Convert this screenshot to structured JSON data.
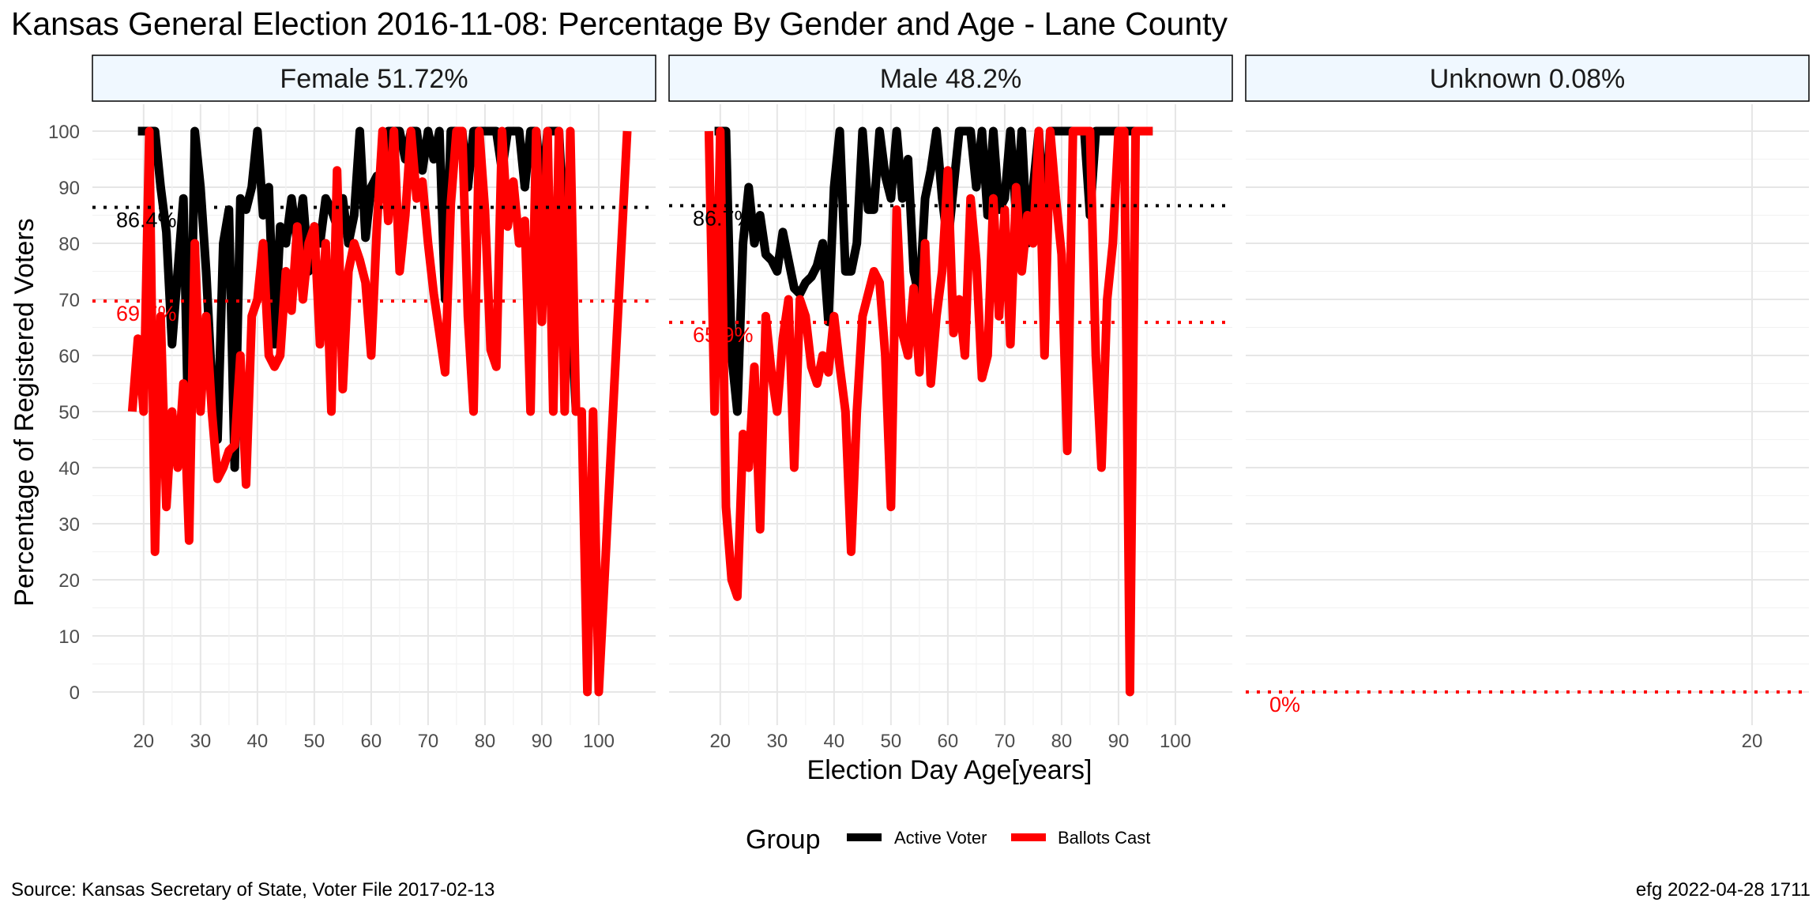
{
  "chart_data": {
    "type": "line",
    "title": "Kansas General Election 2016-11-08:  Percentage By Gender and Age - Lane County",
    "xlabel": "Election Day Age[years]",
    "ylabel": "Percentage of Registered Voters",
    "ylim": [
      0,
      100
    ],
    "yticks": [
      0,
      10,
      20,
      30,
      40,
      50,
      60,
      70,
      80,
      90,
      100
    ],
    "grid": true,
    "legend": {
      "title": "Group",
      "placement": "bottom",
      "items": [
        {
          "label": "Active Voter",
          "color": "#000000"
        },
        {
          "label": "Ballots Cast",
          "color": "#ff0000"
        }
      ]
    },
    "source": "Source:  Kansas Secretary of State, Voter File  2017-02-13",
    "credit": "efg 2022-04-28 1711",
    "panels": [
      {
        "strip": "Female 51.72%",
        "xlim": [
          11,
          110
        ],
        "xticks": [
          20,
          30,
          40,
          50,
          60,
          70,
          80,
          90,
          100
        ],
        "hlines": [
          {
            "value": 86.4,
            "label": "86.4%",
            "color": "#000000"
          },
          {
            "value": 69.7,
            "label": "69.7%",
            "color": "#ff0000"
          }
        ],
        "series": [
          {
            "name": "Active Voter",
            "color": "#000000",
            "x": [
              19,
              20,
              21,
              22,
              23,
              24,
              25,
              26,
              27,
              28,
              29,
              30,
              31,
              32,
              33,
              34,
              35,
              36,
              37,
              38,
              39,
              40,
              41,
              42,
              43,
              44,
              45,
              46,
              47,
              48,
              49,
              50,
              51,
              52,
              53,
              54,
              55,
              56,
              57,
              58,
              59,
              60,
              61,
              62,
              63,
              64,
              65,
              66,
              67,
              68,
              69,
              70,
              71,
              72,
              73,
              74,
              75,
              76,
              77,
              78,
              79,
              80,
              81,
              82,
              83,
              84,
              85,
              86,
              87,
              88,
              89,
              90,
              91,
              92,
              93,
              94,
              95,
              96,
              97
            ],
            "y": [
              100,
              100,
              100,
              100,
              90,
              82,
              62,
              75,
              88,
              40,
              100,
              90,
              75,
              55,
              45,
              80,
              86,
              40,
              88,
              86,
              90,
              100,
              85,
              90,
              62,
              83,
              80,
              88,
              80,
              88,
              75,
              83,
              80,
              88,
              86,
              83,
              88,
              80,
              85,
              100,
              81,
              90,
              92,
              88,
              100,
              100,
              100,
              95,
              100,
              100,
              93,
              100,
              95,
              100,
              70,
              100,
              100,
              100,
              90,
              100,
              100,
              100,
              100,
              100,
              93,
              100,
              100,
              100,
              90,
              100,
              100,
              88,
              100,
              100,
              100,
              80,
              70,
              50,
              50
            ]
          },
          {
            "name": "Ballots Cast",
            "color": "#ff0000",
            "x": [
              18,
              19,
              20,
              21,
              22,
              23,
              24,
              25,
              26,
              27,
              28,
              29,
              30,
              31,
              32,
              33,
              34,
              35,
              36,
              37,
              38,
              39,
              40,
              41,
              42,
              43,
              44,
              45,
              46,
              47,
              48,
              49,
              50,
              51,
              52,
              53,
              54,
              55,
              56,
              57,
              58,
              59,
              60,
              61,
              62,
              63,
              64,
              65,
              66,
              67,
              68,
              69,
              70,
              71,
              72,
              73,
              74,
              75,
              76,
              77,
              78,
              79,
              80,
              81,
              82,
              83,
              84,
              85,
              86,
              87,
              88,
              89,
              90,
              91,
              92,
              93,
              94,
              95,
              96,
              97,
              98,
              99,
              100,
              101,
              102,
              103,
              104,
              105
            ],
            "y": [
              50,
              63,
              50,
              100,
              25,
              67,
              33,
              50,
              40,
              55,
              27,
              80,
              50,
              67,
              50,
              38,
              40,
              43,
              44,
              60,
              37,
              67,
              70,
              80,
              60,
              58,
              60,
              75,
              68,
              83,
              70,
              80,
              83,
              62,
              80,
              50,
              93,
              54,
              75,
              80,
              77,
              73,
              60,
              83,
              100,
              84,
              100,
              75,
              85,
              100,
              88,
              91,
              80,
              71,
              64,
              57,
              87,
              100,
              100,
              67,
              50,
              100,
              86,
              61,
              58,
              100,
              83,
              91,
              80,
              84,
              50,
              100,
              66,
              100,
              50,
              100,
              50,
              100,
              50,
              50,
              0,
              50,
              0,
              20,
              40,
              60,
              80,
              100
            ]
          }
        ]
      },
      {
        "strip": "Male 48.2%",
        "xlim": [
          11,
          110
        ],
        "xticks": [
          20,
          30,
          40,
          50,
          60,
          70,
          80,
          90,
          100
        ],
        "hlines": [
          {
            "value": 86.7,
            "label": "86.7%",
            "color": "#000000"
          },
          {
            "value": 65.9,
            "label": "65.9%",
            "color": "#ff0000"
          }
        ],
        "series": [
          {
            "name": "Active Voter",
            "color": "#000000",
            "x": [
              19,
              20,
              21,
              22,
              23,
              24,
              25,
              26,
              27,
              28,
              29,
              30,
              31,
              32,
              33,
              34,
              35,
              36,
              37,
              38,
              39,
              40,
              41,
              42,
              43,
              44,
              45,
              46,
              47,
              48,
              49,
              50,
              51,
              52,
              53,
              54,
              55,
              56,
              57,
              58,
              59,
              60,
              61,
              62,
              63,
              64,
              65,
              66,
              67,
              68,
              69,
              70,
              71,
              72,
              73,
              74,
              75,
              76,
              77,
              78,
              79,
              80,
              81,
              82,
              83,
              84,
              85,
              86,
              87,
              88,
              89,
              90,
              91,
              92,
              93,
              94,
              95,
              96
            ],
            "y": [
              100,
              100,
              100,
              60,
              50,
              80,
              90,
              80,
              85,
              78,
              77,
              75,
              82,
              77,
              72,
              71,
              73,
              74,
              76,
              80,
              66,
              90,
              100,
              75,
              75,
              80,
              100,
              86,
              86,
              100,
              92,
              88,
              100,
              88,
              95,
              75,
              70,
              88,
              93,
              100,
              88,
              80,
              90,
              100,
              100,
              100,
              90,
              100,
              85,
              100,
              86,
              88,
              100,
              85,
              100,
              80,
              90,
              100,
              82,
              100,
              100,
              100,
              100,
              100,
              100,
              100,
              85,
              100,
              100,
              100,
              100,
              100,
              100,
              100,
              100,
              100,
              100,
              100
            ]
          },
          {
            "name": "Ballots Cast",
            "color": "#ff0000",
            "x": [
              18,
              19,
              20,
              21,
              22,
              23,
              24,
              25,
              26,
              27,
              28,
              29,
              30,
              31,
              32,
              33,
              34,
              35,
              36,
              37,
              38,
              39,
              40,
              41,
              42,
              43,
              44,
              45,
              46,
              47,
              48,
              49,
              50,
              51,
              52,
              53,
              54,
              55,
              56,
              57,
              58,
              59,
              60,
              61,
              62,
              63,
              64,
              65,
              66,
              67,
              68,
              69,
              70,
              71,
              72,
              73,
              74,
              75,
              76,
              77,
              78,
              79,
              80,
              81,
              82,
              83,
              84,
              85,
              86,
              87,
              88,
              89,
              90,
              91,
              92,
              93,
              94,
              95,
              96
            ],
            "y": [
              100,
              50,
              100,
              33,
              20,
              17,
              46,
              40,
              58,
              29,
              67,
              57,
              50,
              63,
              70,
              40,
              70,
              67,
              58,
              55,
              60,
              57,
              67,
              58,
              50,
              25,
              50,
              67,
              71,
              75,
              73,
              60,
              33,
              86,
              64,
              60,
              72,
              57,
              80,
              55,
              67,
              75,
              93,
              64,
              70,
              60,
              88,
              77,
              56,
              60,
              88,
              67,
              86,
              62,
              90,
              75,
              85,
              80,
              100,
              60,
              100,
              88,
              78,
              43,
              100,
              100,
              100,
              100,
              60,
              40,
              70,
              80,
              100,
              100,
              0,
              100,
              100,
              100,
              100
            ]
          }
        ]
      },
      {
        "strip": "Unknown 0.08%",
        "xlim": [
          -69,
          30
        ],
        "xticks": [
          20
        ],
        "hlines": [
          {
            "value": 0,
            "label": "0%",
            "color": "#ff0000"
          }
        ],
        "series": []
      }
    ]
  }
}
